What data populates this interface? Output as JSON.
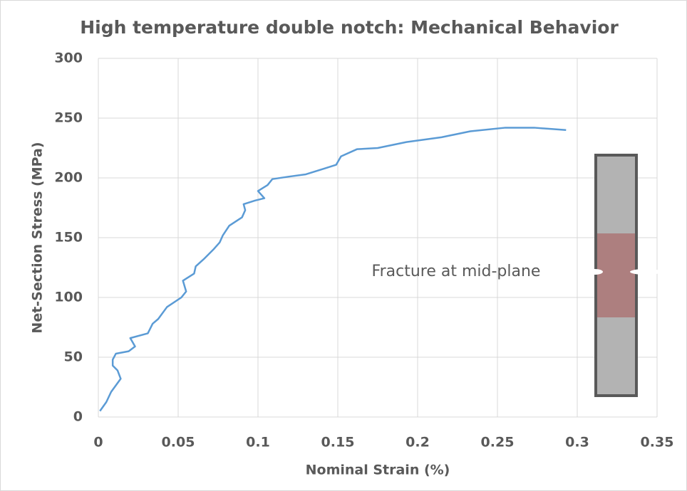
{
  "chart_data": {
    "type": "line",
    "title": "High temperature double notch: Mechanical Behavior",
    "xlabel": "Nominal Strain (%)",
    "ylabel": "Net-Section Stress (MPa)",
    "annotation": "Fracture at mid-plane",
    "color": "#5b9bd5",
    "grid": true,
    "x": [
      0.001,
      0.005,
      0.008,
      0.014,
      0.012,
      0.009,
      0.009,
      0.011,
      0.019,
      0.023,
      0.02,
      0.031,
      0.034,
      0.0375,
      0.043,
      0.052,
      0.055,
      0.053,
      0.06,
      0.061,
      0.066,
      0.072,
      0.076,
      0.078,
      0.082,
      0.09,
      0.092,
      0.091,
      0.098,
      0.104,
      0.1,
      0.106,
      0.109,
      0.119,
      0.13,
      0.142,
      0.149,
      0.152,
      0.162,
      0.175,
      0.193,
      0.215,
      0.233,
      0.255,
      0.273,
      0.293
    ],
    "values": [
      5,
      12.5,
      21,
      32,
      39,
      43,
      48,
      53,
      55,
      59,
      66,
      70,
      78,
      82,
      92,
      100,
      105,
      114,
      120,
      126,
      132,
      140,
      146,
      152,
      160,
      167,
      173,
      178,
      181,
      183,
      189,
      194,
      199,
      201,
      203,
      208,
      211,
      218,
      224,
      225,
      230,
      234,
      239,
      242,
      242,
      240
    ],
    "xlim": [
      0,
      0.35
    ],
    "xticks": [
      0,
      0.05,
      0.1,
      0.15,
      0.2,
      0.25,
      0.3,
      0.35
    ],
    "ylim": [
      0,
      300
    ],
    "yticks": [
      0,
      50,
      100,
      150,
      200,
      250,
      300
    ]
  }
}
